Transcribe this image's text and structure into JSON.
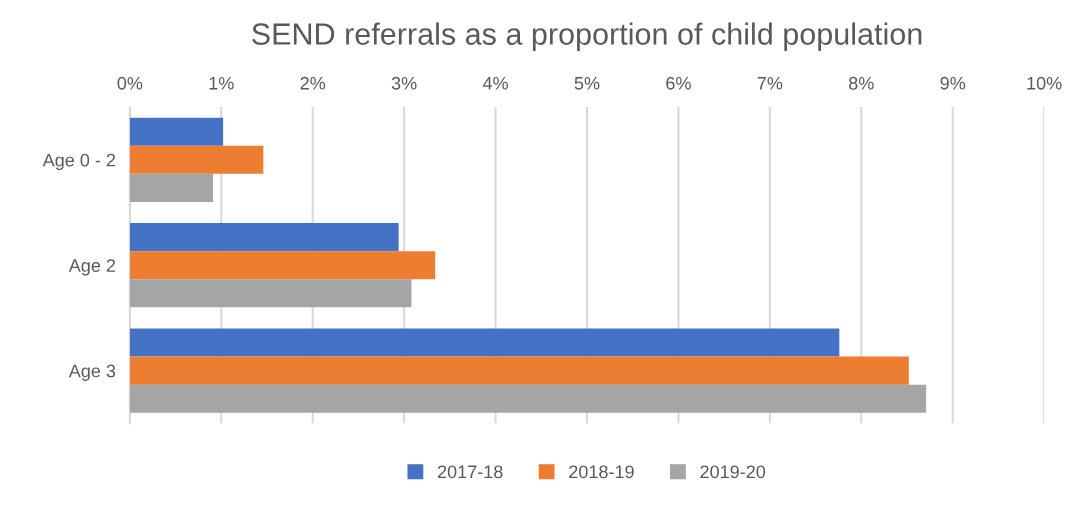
{
  "chart_data": {
    "type": "bar",
    "orientation": "horizontal",
    "title": "SEND referrals as a proportion of child population",
    "categories": [
      "Age 0 - 2",
      "Age 2",
      "Age 3"
    ],
    "series": [
      {
        "name": "2017-18",
        "color": "#4472c4",
        "values": [
          1.02,
          2.94,
          7.76
        ]
      },
      {
        "name": "2018-19",
        "color": "#ed7d31",
        "values": [
          1.46,
          3.34,
          8.52
        ]
      },
      {
        "name": "2019-20",
        "color": "#a5a5a5",
        "values": [
          0.91,
          3.08,
          8.71
        ]
      }
    ],
    "xlim": [
      0,
      10
    ],
    "xticks": [
      {
        "value": 0,
        "label": "0%"
      },
      {
        "value": 1,
        "label": "1%"
      },
      {
        "value": 2,
        "label": "2%"
      },
      {
        "value": 3,
        "label": "3%"
      },
      {
        "value": 4,
        "label": "4%"
      },
      {
        "value": 5,
        "label": "5%"
      },
      {
        "value": 6,
        "label": "6%"
      },
      {
        "value": 7,
        "label": "7%"
      },
      {
        "value": 8,
        "label": "8%"
      },
      {
        "value": 9,
        "label": "9%"
      },
      {
        "value": 10,
        "label": "10%"
      }
    ],
    "grid": "x",
    "legend": "bottom"
  }
}
